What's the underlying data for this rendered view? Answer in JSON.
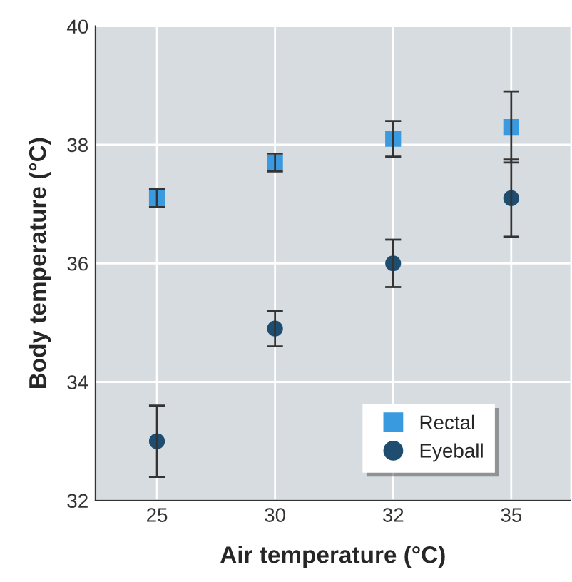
{
  "chart_data": {
    "type": "scatter",
    "xlabel": "Air temperature (°C)",
    "ylabel": "Body temperature (°C)",
    "categories": [
      "25",
      "30",
      "32",
      "35"
    ],
    "ylim": [
      32,
      40
    ],
    "yticks": [
      32,
      34,
      36,
      38,
      40
    ],
    "grid": true,
    "legend": "bottom right",
    "series": [
      {
        "name": "Rectal",
        "color": "#3a9ae0",
        "marker": "square",
        "values": [
          37.1,
          37.7,
          38.1,
          38.3
        ],
        "errors": [
          0.15,
          0.15,
          0.3,
          0.6
        ]
      },
      {
        "name": "Eyeball",
        "color": "#1f4d70",
        "marker": "circle",
        "values": [
          33.0,
          34.9,
          36.0,
          37.1
        ],
        "errors": [
          0.6,
          0.3,
          0.4,
          0.65
        ]
      }
    ]
  }
}
